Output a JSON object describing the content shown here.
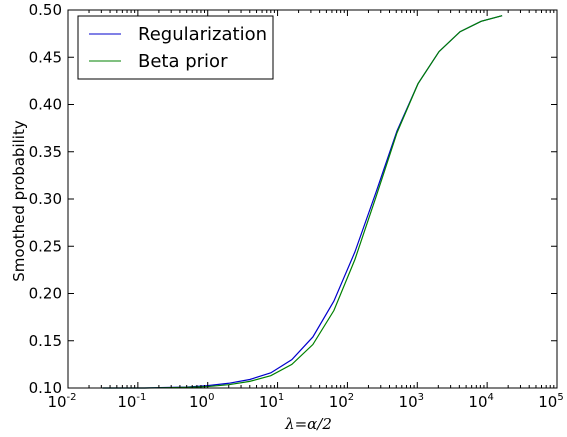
{
  "chart_data": {
    "type": "line",
    "xscale": "log",
    "xlim": [
      0.01,
      100000
    ],
    "ylim": [
      0.1,
      0.5
    ],
    "xlabel": "λ=α/2",
    "ylabel": "Smoothed probability",
    "x_ticks": [
      {
        "base": "10",
        "exp": "-2",
        "value": 0.01
      },
      {
        "base": "10",
        "exp": "-1",
        "value": 0.1
      },
      {
        "base": "10",
        "exp": "0",
        "value": 1
      },
      {
        "base": "10",
        "exp": "1",
        "value": 10
      },
      {
        "base": "10",
        "exp": "2",
        "value": 100
      },
      {
        "base": "10",
        "exp": "3",
        "value": 1000
      },
      {
        "base": "10",
        "exp": "4",
        "value": 10000
      },
      {
        "base": "10",
        "exp": "5",
        "value": 100000
      }
    ],
    "y_ticks": [
      "0.10",
      "0.15",
      "0.20",
      "0.25",
      "0.30",
      "0.35",
      "0.40",
      "0.45",
      "0.50"
    ],
    "legend_position": "top-left",
    "grid": false,
    "series": [
      {
        "name": "Regularization",
        "color": "#0000cc",
        "x": [
          0.03125,
          0.0625,
          0.125,
          0.25,
          0.5,
          1,
          2,
          4,
          8,
          16,
          32,
          64,
          128,
          256,
          512,
          1024,
          2048,
          4096,
          8192,
          16384
        ],
        "y": [
          0.1,
          0.1,
          0.1,
          0.1005,
          0.101,
          0.1025,
          0.105,
          0.109,
          0.116,
          0.13,
          0.154,
          0.192,
          0.244,
          0.307,
          0.372,
          0.422,
          0.456,
          0.477,
          0.488,
          0.494
        ]
      },
      {
        "name": "Beta prior",
        "color": "#008000",
        "x": [
          0.03125,
          0.0625,
          0.125,
          0.25,
          0.5,
          1,
          2,
          4,
          8,
          16,
          32,
          64,
          128,
          256,
          512,
          1024,
          2048,
          4096,
          8192,
          16384
        ],
        "y": [
          0.1,
          0.1,
          0.1,
          0.1003,
          0.1007,
          0.1015,
          0.1035,
          0.107,
          0.113,
          0.125,
          0.146,
          0.182,
          0.236,
          0.302,
          0.37,
          0.422,
          0.456,
          0.477,
          0.488,
          0.494
        ]
      }
    ]
  }
}
